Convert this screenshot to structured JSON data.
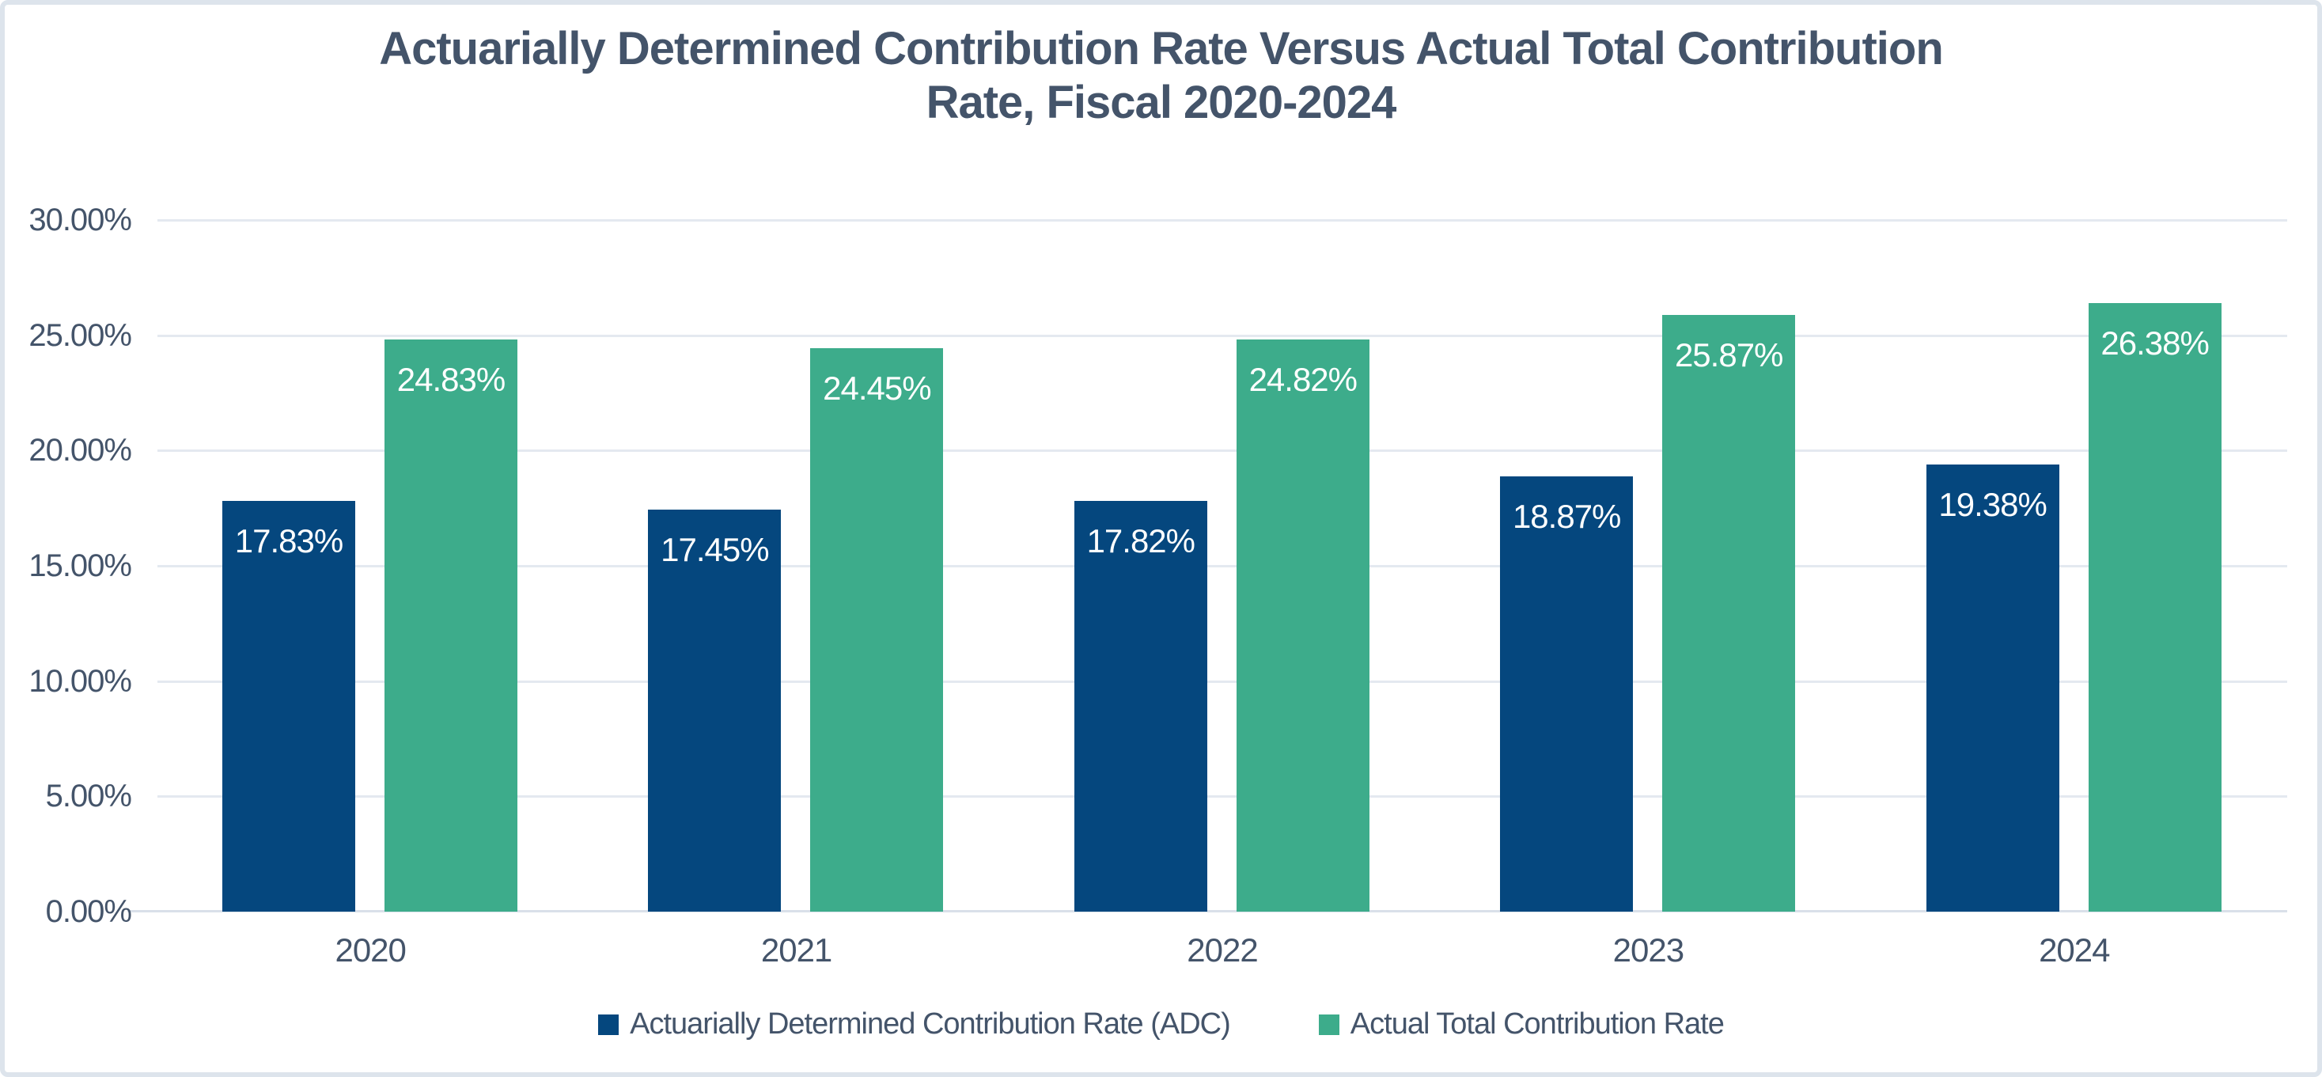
{
  "title": {
    "line1": "Actuarially Determined Contribution Rate Versus Actual Total Contribution",
    "line2": "Rate, Fiscal 2020-2024"
  },
  "colors": {
    "adc_bar": "#05477e",
    "actual_bar": "#3dac8b",
    "text": "#44546a",
    "bar_label_text": "#ffffff",
    "gridline": "#e4e9f0",
    "axis_line": "#d9e0e9",
    "canvas_border": "#dde4ec"
  },
  "chart_data": {
    "type": "bar",
    "title": "Actuarially Determined Contribution Rate Versus Actual Total Contribution Rate, Fiscal 2020-2024",
    "categories": [
      "2020",
      "2021",
      "2022",
      "2023",
      "2024"
    ],
    "series": [
      {
        "name": "Actuarially Determined Contribution Rate (ADC)",
        "values": [
          17.83,
          17.45,
          17.82,
          18.87,
          19.38
        ],
        "labels": [
          "17.83%",
          "17.45%",
          "17.82%",
          "18.87%",
          "19.38%"
        ],
        "color": "#05477e"
      },
      {
        "name": "Actual Total Contribution Rate",
        "values": [
          24.83,
          24.45,
          24.82,
          25.87,
          26.38
        ],
        "labels": [
          "24.83%",
          "24.45%",
          "24.82%",
          "25.87%",
          "26.38%"
        ],
        "color": "#3dac8b"
      }
    ],
    "xlabel": "",
    "ylabel": "",
    "ylim": [
      0,
      30
    ],
    "ytick_interval": 5,
    "ytick_labels": [
      "0.00%",
      "5.00%",
      "10.00%",
      "15.00%",
      "20.00%",
      "25.00%",
      "30.00%"
    ],
    "grid": true,
    "legend_position": "bottom",
    "data_labels": "inside-top"
  }
}
